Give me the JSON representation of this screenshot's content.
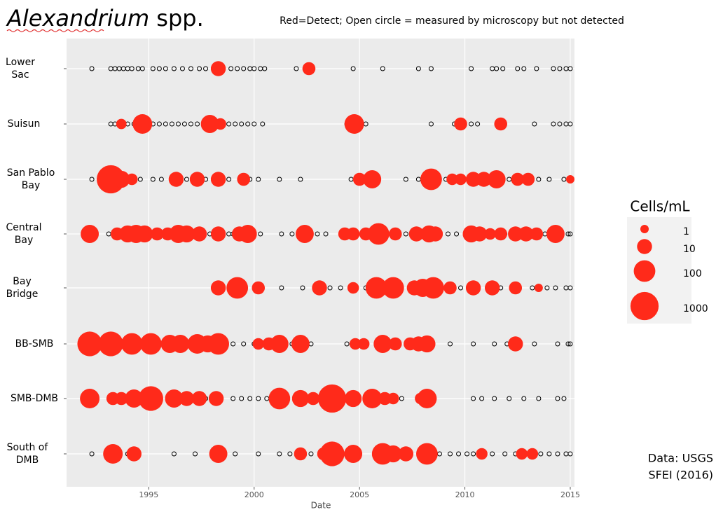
{
  "chart_data": {
    "type": "bubble-timeline",
    "title": "Alexandrium",
    "title_suffix": "spp.",
    "subtitle": "Red=Detect; Open circle = measured by microscopy but not detected",
    "xlabel": "Date",
    "xlim": [
      1991.1,
      2015.2
    ],
    "xticks": [
      1995,
      2000,
      2005,
      2010,
      2015
    ],
    "grid": true,
    "detect_color": "#ff2a1a",
    "not_detected_color": "#000000",
    "legend_title": "Cells/mL",
    "legend_sizes": [
      1,
      10,
      100,
      1000
    ],
    "source": [
      "Data: USGS",
      "SFEI (2016)"
    ],
    "stations": [
      {
        "name": "Lower Sac",
        "detect": {
          "x": [
            1998.3,
            2002.6
          ],
          "cells_per_ml": [
            10,
            5
          ]
        },
        "not_detected": {
          "x": [
            1992.3,
            1993.2,
            1993.4,
            1993.6,
            1993.8,
            1994.0,
            1994.2,
            1994.5,
            1994.7,
            1995.2,
            1995.5,
            1995.8,
            1996.2,
            1996.6,
            1997.0,
            1997.4,
            1997.7,
            1998.9,
            1999.2,
            1999.5,
            1999.8,
            2000.0,
            2000.3,
            2000.5,
            2002.0,
            2004.7,
            2006.1,
            2007.8,
            2008.4,
            2010.3,
            2011.3,
            2011.5,
            2011.8,
            2012.5,
            2012.8,
            2013.4,
            2014.2,
            2014.5,
            2014.8,
            2015.0
          ]
        }
      },
      {
        "name": "Suisun",
        "detect": {
          "x": [
            1993.7,
            1994.7,
            1997.9,
            1998.4,
            2004.75,
            2009.8,
            2011.7
          ],
          "cells_per_ml": [
            2,
            50,
            30,
            3,
            50,
            5,
            5
          ]
        },
        "not_detected": {
          "x": [
            1993.2,
            1993.4,
            1994.0,
            1994.3,
            1995.2,
            1995.5,
            1995.8,
            1996.1,
            1996.4,
            1996.7,
            1997.0,
            1997.3,
            1998.8,
            1999.1,
            1999.4,
            1999.7,
            2000.0,
            2000.4,
            2004.4,
            2005.3,
            2008.4,
            2009.5,
            2010.3,
            2010.6,
            2013.3,
            2014.2,
            2014.5,
            2014.8,
            2015.0
          ]
        }
      },
      {
        "name": "San Pablo Bay",
        "detect": {
          "x": [
            1993.2,
            1993.7,
            1994.2,
            1996.3,
            1997.3,
            1998.3,
            1999.5,
            2005.0,
            2005.6,
            2008.4,
            2009.4,
            2009.8,
            2010.4,
            2010.9,
            2011.5,
            2012.5,
            2013.0,
            2015.0
          ],
          "cells_per_ml": [
            1000,
            20,
            3,
            10,
            10,
            10,
            5,
            5,
            30,
            100,
            3,
            3,
            10,
            10,
            30,
            5,
            5,
            1
          ]
        },
        "not_detected": {
          "x": [
            1992.3,
            1994.6,
            1995.2,
            1995.6,
            1996.8,
            1997.7,
            1998.8,
            1999.8,
            2000.2,
            2001.2,
            2002.2,
            2004.6,
            2007.2,
            2007.8,
            2009.1,
            2012.1,
            2013.5,
            2014.0,
            2014.7
          ]
        }
      },
      {
        "name": "Central Bay",
        "detect": {
          "x": [
            1992.2,
            1993.5,
            1994.0,
            1994.4,
            1994.8,
            1995.4,
            1995.9,
            1996.4,
            1996.8,
            1997.4,
            1998.3,
            1999.3,
            1999.7,
            2002.4,
            2004.3,
            2004.7,
            2005.3,
            2005.9,
            2006.7,
            2007.7,
            2008.3,
            2008.6,
            2010.3,
            2010.7,
            2011.2,
            2011.7,
            2012.4,
            2012.9,
            2013.4,
            2014.3
          ],
          "cells_per_ml": [
            30,
            5,
            20,
            30,
            20,
            5,
            5,
            30,
            20,
            10,
            10,
            10,
            30,
            30,
            5,
            5,
            5,
            100,
            5,
            10,
            20,
            10,
            20,
            10,
            3,
            5,
            10,
            10,
            5,
            30
          ]
        },
        "not_detected": {
          "x": [
            1993.1,
            1995.2,
            1997.9,
            1998.8,
            1999.0,
            2000.3,
            2001.3,
            2001.8,
            2003.0,
            2003.4,
            2006.3,
            2007.2,
            2009.2,
            2009.6,
            2011.9,
            2013.8,
            2014.6,
            2014.9,
            2015.0
          ]
        }
      },
      {
        "name": "Bay Bridge",
        "detect": {
          "x": [
            1998.3,
            1999.2,
            2000.2,
            2003.1,
            2004.7,
            2005.8,
            2006.6,
            2007.6,
            2008.0,
            2008.5,
            2009.3,
            2010.4,
            2011.3,
            2012.4,
            2013.5
          ],
          "cells_per_ml": [
            10,
            100,
            5,
            10,
            3,
            100,
            100,
            10,
            30,
            100,
            5,
            10,
            10,
            5,
            1
          ]
        },
        "not_detected": {
          "x": [
            2001.3,
            2002.3,
            2003.6,
            2004.1,
            2005.3,
            2009.8,
            2011.7,
            2013.2,
            2013.9,
            2014.3,
            2014.8,
            2015.0
          ]
        }
      },
      {
        "name": "BB-SMB",
        "detect": {
          "x": [
            1992.2,
            1993.2,
            1994.2,
            1995.1,
            1996.0,
            1996.5,
            1997.3,
            1997.8,
            1998.3,
            2000.2,
            2000.7,
            2001.2,
            2002.2,
            2004.8,
            2005.2,
            2006.1,
            2006.7,
            2007.4,
            2007.8,
            2008.2,
            2012.4
          ],
          "cells_per_ml": [
            300,
            300,
            100,
            100,
            30,
            30,
            50,
            20,
            100,
            3,
            5,
            30,
            30,
            3,
            3,
            30,
            5,
            5,
            10,
            20,
            10
          ]
        },
        "not_detected": {
          "x": [
            1999.0,
            1999.5,
            2000.0,
            2001.8,
            2002.7,
            2004.4,
            2009.3,
            2010.4,
            2011.4,
            2012.0,
            2013.3,
            2014.4,
            2014.9,
            2015.0
          ]
        }
      },
      {
        "name": "SMB-DMB",
        "detect": {
          "x": [
            1992.2,
            1993.3,
            1993.7,
            1994.3,
            1995.1,
            1996.2,
            1996.8,
            1997.4,
            1998.2,
            2001.2,
            2002.2,
            2002.8,
            2003.7,
            2004.7,
            2005.6,
            2006.2,
            2006.6,
            2007.9,
            2008.2
          ],
          "cells_per_ml": [
            50,
            5,
            5,
            30,
            300,
            30,
            10,
            10,
            10,
            100,
            20,
            5,
            1000,
            20,
            50,
            5,
            3,
            3,
            50
          ]
        },
        "not_detected": {
          "x": [
            1997.7,
            1999.0,
            1999.4,
            1999.8,
            2000.2,
            2000.6,
            2004.2,
            2007.0,
            2010.4,
            2010.8,
            2011.4,
            2012.1,
            2012.8,
            2013.5,
            2014.4,
            2014.7
          ]
        }
      },
      {
        "name": "South of DMB",
        "detect": {
          "x": [
            1993.3,
            1994.3,
            1998.3,
            2002.2,
            2003.3,
            2003.7,
            2004.7,
            2006.1,
            2006.6,
            2007.2,
            2008.2,
            2010.8,
            2012.7,
            2013.2
          ],
          "cells_per_ml": [
            50,
            10,
            30,
            5,
            5,
            300,
            30,
            100,
            20,
            10,
            100,
            3,
            3,
            3
          ]
        },
        "not_detected": {
          "x": [
            1992.3,
            1994.0,
            1996.2,
            1997.2,
            1999.1,
            2000.2,
            2001.2,
            2001.7,
            2002.7,
            2008.8,
            2009.3,
            2009.7,
            2010.1,
            2010.4,
            2011.3,
            2011.9,
            2012.4,
            2013.6,
            2014.0,
            2014.4,
            2014.8,
            2015.0
          ]
        }
      }
    ]
  }
}
